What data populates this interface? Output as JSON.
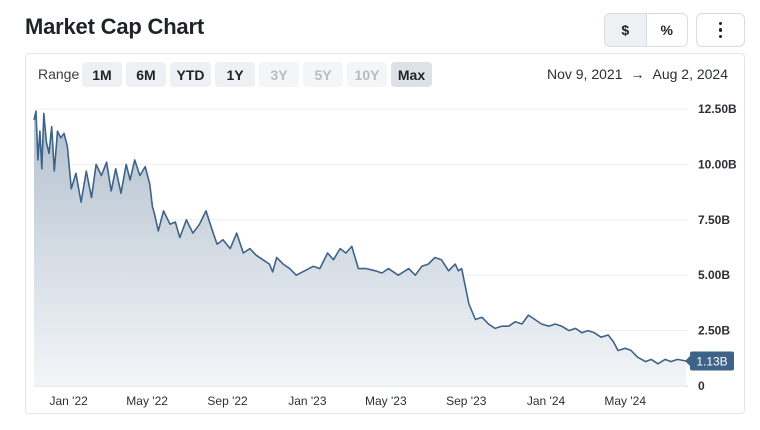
{
  "header": {
    "title": "Market Cap Chart"
  },
  "unit_toggle": {
    "dollar": "$",
    "percent": "%"
  },
  "menu": {
    "icon": "vertical-ellipsis-icon"
  },
  "range": {
    "label": "Range",
    "buttons": [
      {
        "label": "1M",
        "state": "enabled"
      },
      {
        "label": "6M",
        "state": "enabled"
      },
      {
        "label": "YTD",
        "state": "enabled"
      },
      {
        "label": "1Y",
        "state": "enabled"
      },
      {
        "label": "3Y",
        "state": "disabled"
      },
      {
        "label": "5Y",
        "state": "disabled"
      },
      {
        "label": "10Y",
        "state": "disabled"
      },
      {
        "label": "Max",
        "state": "selected"
      }
    ],
    "start": "Nov 9, 2021",
    "arrow": "→",
    "end": "Aug 2, 2024"
  },
  "chart_data": {
    "type": "area",
    "x_tick_labels": [
      "Jan '22",
      "May '22",
      "Sep '22",
      "Jan '23",
      "May '23",
      "Sep '23",
      "Jan '24",
      "May '24"
    ],
    "y_tick_labels": [
      "0",
      "2.50B",
      "5.00B",
      "7.50B",
      "10.00B",
      "12.50B"
    ],
    "ylim": [
      0,
      12.5
    ],
    "grid": true,
    "current_value_label": "1.13B",
    "colors": {
      "line": "#3d6389",
      "fill_top": "#aebccb",
      "fill_bottom": "#f1f4f7",
      "badge": "#3d6389"
    },
    "series": [
      {
        "x": [
          "2021-11-09",
          "2021-11-12",
          "2021-11-15",
          "2021-11-18",
          "2021-11-21",
          "2021-11-24",
          "2021-11-28",
          "2021-12-02",
          "2021-12-06",
          "2021-12-10",
          "2021-12-15",
          "2021-12-20",
          "2021-12-25",
          "2021-12-30",
          "2022-01-05",
          "2022-01-12",
          "2022-01-20",
          "2022-01-28",
          "2022-02-05",
          "2022-02-12",
          "2022-02-20",
          "2022-02-28",
          "2022-03-07",
          "2022-03-14",
          "2022-03-22",
          "2022-03-30",
          "2022-04-05",
          "2022-04-12",
          "2022-04-20",
          "2022-04-28",
          "2022-05-05",
          "2022-05-09",
          "2022-05-12",
          "2022-05-18",
          "2022-05-26",
          "2022-06-05",
          "2022-06-13",
          "2022-06-20",
          "2022-06-30",
          "2022-07-10",
          "2022-07-20",
          "2022-07-30",
          "2022-08-10",
          "2022-08-16",
          "2022-08-25",
          "2022-09-05",
          "2022-09-15",
          "2022-09-25",
          "2022-10-05",
          "2022-10-15",
          "2022-10-25",
          "2022-11-04",
          "2022-11-09",
          "2022-11-15",
          "2022-11-25",
          "2022-12-05",
          "2022-12-15",
          "2022-12-28",
          "2023-01-10",
          "2023-01-20",
          "2023-02-01",
          "2023-02-10",
          "2023-02-20",
          "2023-03-01",
          "2023-03-10",
          "2023-03-20",
          "2023-04-01",
          "2023-04-15",
          "2023-04-25",
          "2023-05-05",
          "2023-05-20",
          "2023-06-05",
          "2023-06-15",
          "2023-06-25",
          "2023-07-05",
          "2023-07-15",
          "2023-07-25",
          "2023-08-05",
          "2023-08-15",
          "2023-08-20",
          "2023-08-25",
          "2023-09-05",
          "2023-09-15",
          "2023-09-25",
          "2023-10-05",
          "2023-10-15",
          "2023-10-25",
          "2023-11-05",
          "2023-11-15",
          "2023-11-25",
          "2023-12-05",
          "2023-12-15",
          "2023-12-25",
          "2024-01-05",
          "2024-01-15",
          "2024-01-25",
          "2024-02-05",
          "2024-02-15",
          "2024-02-25",
          "2024-03-05",
          "2024-03-15",
          "2024-03-25",
          "2024-04-05",
          "2024-04-13",
          "2024-04-20",
          "2024-05-01",
          "2024-05-10",
          "2024-05-20",
          "2024-06-01",
          "2024-06-10",
          "2024-06-20",
          "2024-07-01",
          "2024-07-10",
          "2024-07-20",
          "2024-08-02"
        ],
        "values": [
          12.0,
          12.4,
          10.2,
          11.5,
          9.8,
          12.3,
          11.0,
          10.5,
          11.7,
          9.7,
          11.5,
          11.2,
          11.4,
          10.8,
          8.9,
          9.6,
          8.3,
          9.7,
          8.5,
          10.0,
          9.5,
          10.1,
          8.8,
          9.8,
          8.7,
          10.0,
          9.3,
          10.2,
          9.5,
          9.9,
          9.1,
          8.1,
          7.8,
          7.0,
          7.9,
          7.3,
          7.4,
          6.7,
          7.5,
          6.9,
          7.3,
          7.9,
          6.9,
          6.4,
          6.6,
          6.2,
          6.9,
          6.0,
          6.2,
          5.9,
          5.7,
          5.5,
          5.15,
          5.8,
          5.5,
          5.3,
          5.0,
          5.2,
          5.4,
          5.3,
          6.0,
          5.7,
          6.2,
          6.0,
          6.3,
          5.3,
          5.3,
          5.2,
          5.1,
          5.3,
          5.0,
          5.3,
          5.0,
          5.4,
          5.5,
          5.8,
          5.7,
          5.2,
          5.5,
          5.2,
          5.3,
          3.7,
          3.0,
          3.1,
          2.8,
          2.6,
          2.7,
          2.7,
          2.9,
          2.8,
          3.2,
          3.0,
          2.8,
          2.7,
          2.8,
          2.7,
          2.5,
          2.6,
          2.4,
          2.5,
          2.4,
          2.2,
          2.3,
          2.0,
          1.6,
          1.7,
          1.6,
          1.3,
          1.1,
          1.2,
          1.0,
          1.2,
          1.1,
          1.2,
          1.13
        ]
      }
    ]
  }
}
